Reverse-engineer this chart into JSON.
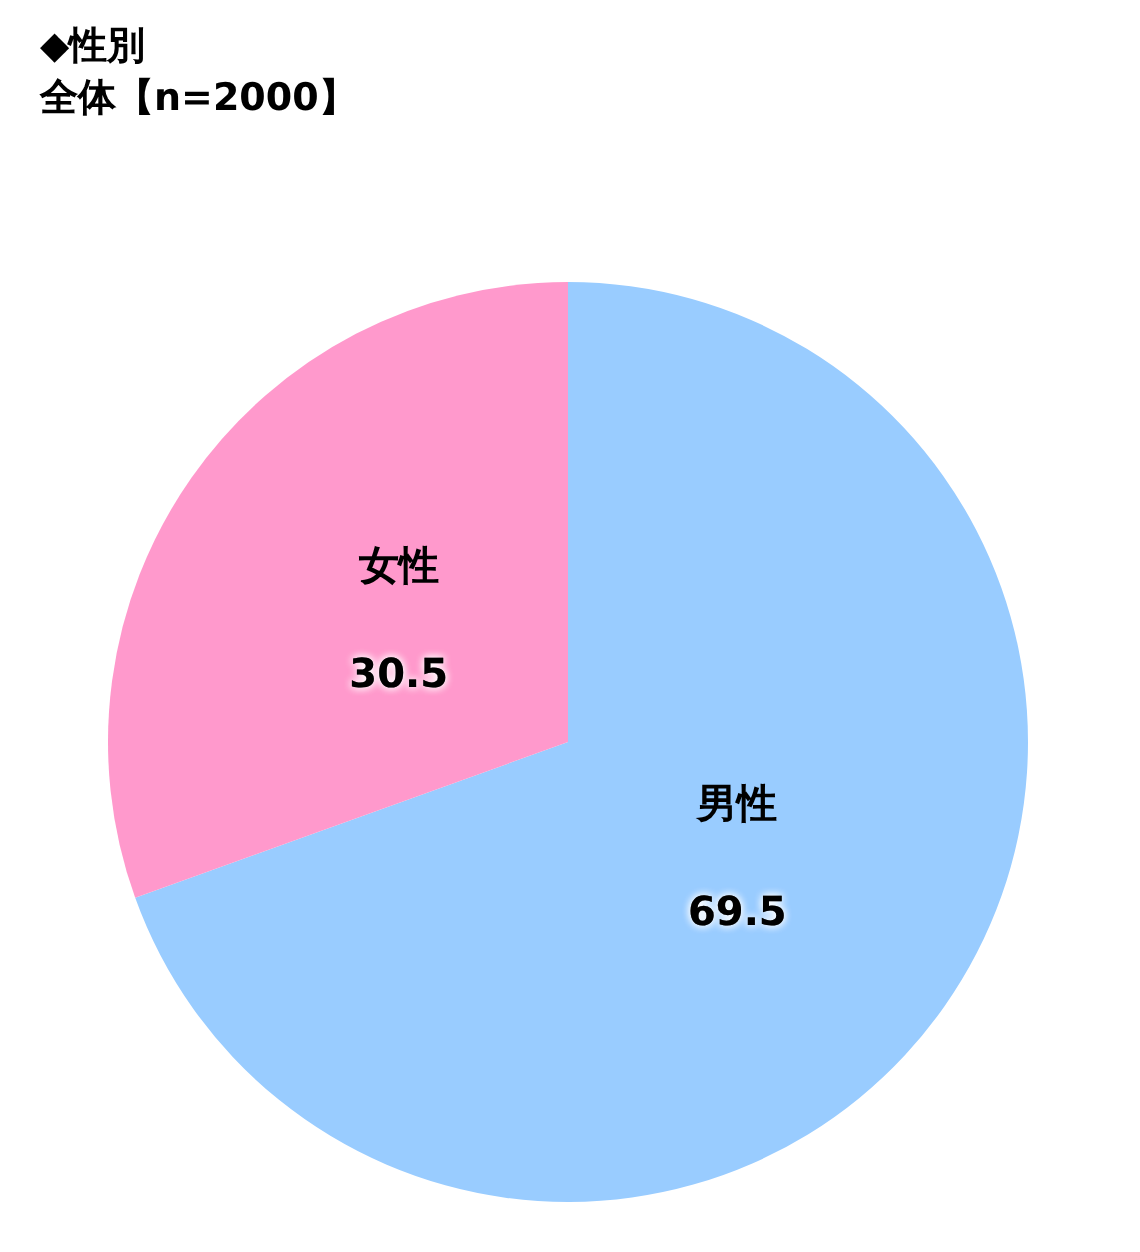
{
  "chart_data": {
    "type": "pie",
    "title": "◆性別",
    "subtitle": "全体【n=2000】",
    "categories": [
      "男性",
      "女性"
    ],
    "values": [
      69.5,
      30.5
    ],
    "colors": [
      "#99ccff",
      "#ff99cc"
    ],
    "data_labels": true,
    "legend": false
  }
}
